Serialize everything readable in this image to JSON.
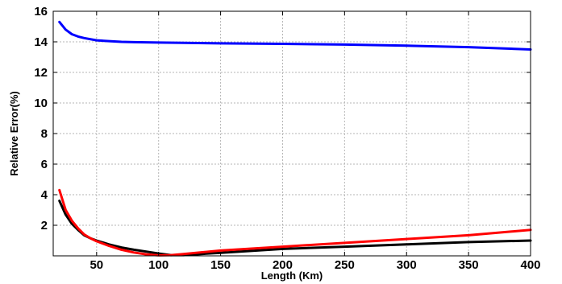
{
  "chart_data": {
    "type": "line",
    "xlabel": "Length (Km)",
    "ylabel": "Relative Error(%)",
    "xlim": [
      15,
      400
    ],
    "ylim": [
      0,
      16
    ],
    "xticks": [
      50,
      100,
      150,
      200,
      250,
      300,
      350,
      400
    ],
    "yticks": [
      2,
      4,
      6,
      8,
      10,
      12,
      14,
      16
    ],
    "grid": true,
    "legend": "none",
    "series": [
      {
        "color": "#0000ff",
        "x": [
          20,
          25,
          30,
          35,
          40,
          50,
          60,
          70,
          80,
          100,
          120,
          150,
          200,
          250,
          300,
          350,
          400
        ],
        "y": [
          15.3,
          14.8,
          14.5,
          14.35,
          14.25,
          14.1,
          14.05,
          14.0,
          13.98,
          13.95,
          13.93,
          13.9,
          13.87,
          13.82,
          13.75,
          13.65,
          13.5
        ]
      },
      {
        "color": "#000000",
        "x": [
          20,
          25,
          30,
          35,
          40,
          45,
          50,
          60,
          70,
          80,
          90,
          100,
          110,
          120,
          150,
          200,
          250,
          300,
          350,
          400
        ],
        "y": [
          3.6,
          2.7,
          2.1,
          1.7,
          1.35,
          1.15,
          1.0,
          0.75,
          0.55,
          0.4,
          0.28,
          0.15,
          0.05,
          0.05,
          0.2,
          0.45,
          0.6,
          0.75,
          0.9,
          1.0
        ]
      },
      {
        "color": "#ff0000",
        "x": [
          20,
          25,
          30,
          35,
          40,
          45,
          50,
          60,
          70,
          80,
          90,
          100,
          110,
          120,
          150,
          200,
          250,
          300,
          350,
          400
        ],
        "y": [
          4.3,
          3.0,
          2.3,
          1.8,
          1.4,
          1.15,
          0.95,
          0.65,
          0.4,
          0.22,
          0.1,
          0.03,
          0.05,
          0.12,
          0.35,
          0.6,
          0.85,
          1.1,
          1.35,
          1.7
        ]
      }
    ]
  }
}
